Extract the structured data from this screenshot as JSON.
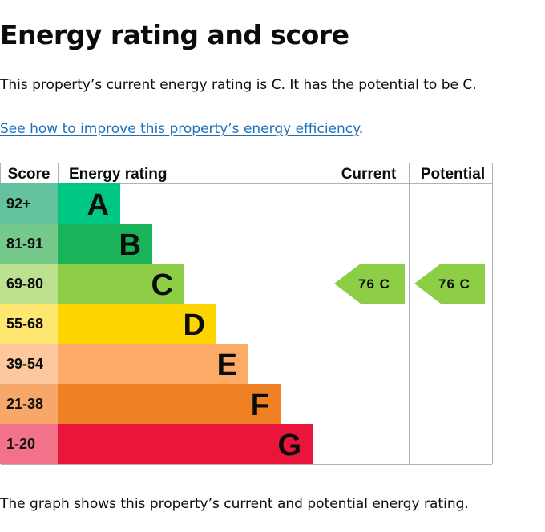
{
  "page": {
    "title": "Energy rating and score",
    "intro": "This property’s current energy rating is C. It has the potential to be C.",
    "link_text": "See how to improve this property’s energy efficiency",
    "link_suffix": ".",
    "caption": "The graph shows this property’s current and potential energy rating."
  },
  "chart_data": {
    "type": "bar",
    "columns": [
      "Score",
      "Energy rating",
      "Current",
      "Potential"
    ],
    "bands": [
      {
        "band": "A",
        "score": "92+",
        "color": "#008054",
        "score_bg": "#63c39f",
        "bar": "#00c781"
      },
      {
        "band": "B",
        "score": "81-91",
        "color": "#19b459",
        "score_bg": "#75c98b",
        "bar": "#19b459"
      },
      {
        "band": "C",
        "score": "69-80",
        "color": "#8dce46",
        "score_bg": "#bbe18f",
        "bar": "#8dce46"
      },
      {
        "band": "D",
        "score": "55-68",
        "color": "#ffd500",
        "score_bg": "#ffe670",
        "bar": "#ffd500"
      },
      {
        "band": "E",
        "score": "39-54",
        "color": "#fcaa65",
        "score_bg": "#fdc89d",
        "bar": "#fcaa65"
      },
      {
        "band": "F",
        "score": "21-38",
        "color": "#ef8023",
        "score_bg": "#f5a86a",
        "bar": "#ef8023"
      },
      {
        "band": "G",
        "score": "1-20",
        "color": "#e9153b",
        "score_bg": "#f2728a",
        "bar": "#e9153b"
      }
    ],
    "current": {
      "score": 76,
      "band": "C",
      "label": "76 C",
      "color": "#8dce46"
    },
    "potential": {
      "score": 76,
      "band": "C",
      "label": "76 C",
      "color": "#8dce46"
    }
  }
}
